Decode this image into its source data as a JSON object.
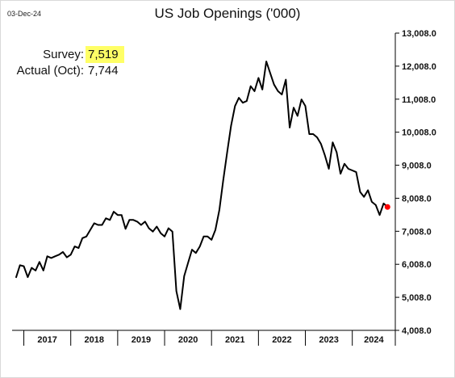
{
  "header": {
    "date": "03-Dec-24",
    "title": "US Job Openings ('000)"
  },
  "callout": {
    "survey_label": "Survey:",
    "survey_value": "7,519",
    "actual_label": "Actual (Oct):",
    "actual_value": "7,744"
  },
  "colors": {
    "line": "#000000",
    "latest_marker": "#ff0000",
    "highlight": "#ffff66"
  },
  "chart_data": {
    "type": "line",
    "title": "US Job Openings ('000)",
    "xlabel": "",
    "ylabel": "",
    "ylim": [
      4008,
      13008
    ],
    "y_ticks": [
      "13,008.0",
      "12,008.0",
      "11,008.0",
      "10,008.0",
      "9,008.0",
      "8,008.0",
      "7,008.0",
      "6,008.0",
      "5,008.0",
      "4,008.0"
    ],
    "y_tick_values": [
      13008,
      12008,
      11008,
      10008,
      9008,
      8008,
      7008,
      6008,
      5008,
      4008
    ],
    "x_categories": [
      "2017",
      "2018",
      "2019",
      "2020",
      "2021",
      "2022",
      "2023",
      "2024"
    ],
    "x_range": [
      "2016-10",
      "2024-12"
    ],
    "grid": false,
    "y_axis_side": "right",
    "series": [
      {
        "x": [
          "2016-11",
          "2016-12",
          "2017-01",
          "2017-02",
          "2017-03",
          "2017-04",
          "2017-05",
          "2017-06",
          "2017-07",
          "2017-08",
          "2017-09",
          "2017-10",
          "2017-11",
          "2017-12",
          "2018-01",
          "2018-02",
          "2018-03",
          "2018-04",
          "2018-05",
          "2018-06",
          "2018-07",
          "2018-08",
          "2018-09",
          "2018-10",
          "2018-11",
          "2018-12",
          "2019-01",
          "2019-02",
          "2019-03",
          "2019-04",
          "2019-05",
          "2019-06",
          "2019-07",
          "2019-08",
          "2019-09",
          "2019-10",
          "2019-11",
          "2019-12",
          "2020-01",
          "2020-02",
          "2020-03",
          "2020-04",
          "2020-05",
          "2020-06",
          "2020-07",
          "2020-08",
          "2020-09",
          "2020-10",
          "2020-11",
          "2020-12",
          "2021-01",
          "2021-02",
          "2021-03",
          "2021-04",
          "2021-05",
          "2021-06",
          "2021-07",
          "2021-08",
          "2021-09",
          "2021-10",
          "2021-11",
          "2021-12",
          "2022-01",
          "2022-02",
          "2022-03",
          "2022-04",
          "2022-05",
          "2022-06",
          "2022-07",
          "2022-08",
          "2022-09",
          "2022-10",
          "2022-11",
          "2022-12",
          "2023-01",
          "2023-02",
          "2023-03",
          "2023-04",
          "2023-05",
          "2023-06",
          "2023-07",
          "2023-08",
          "2023-09",
          "2023-10",
          "2023-11",
          "2023-12",
          "2024-01",
          "2024-02",
          "2024-03",
          "2024-04",
          "2024-05",
          "2024-06",
          "2024-07",
          "2024-08",
          "2024-09"
        ],
        "values": [
          5600,
          5980,
          5950,
          5620,
          5900,
          5820,
          6080,
          5820,
          6250,
          6200,
          6250,
          6300,
          6380,
          6220,
          6300,
          6550,
          6500,
          6800,
          6850,
          7050,
          7250,
          7200,
          7200,
          7400,
          7350,
          7600,
          7500,
          7500,
          7080,
          7350,
          7350,
          7300,
          7200,
          7300,
          7100,
          7000,
          7150,
          6950,
          6850,
          7100,
          7000,
          5200,
          4650,
          5650,
          6050,
          6450,
          6350,
          6550,
          6850,
          6850,
          6750,
          7050,
          7650,
          8550,
          9400,
          10200,
          10800,
          11050,
          10900,
          10950,
          11400,
          11250,
          11650,
          11300,
          12150,
          11800,
          11450,
          11250,
          11150,
          11600,
          10150,
          10750,
          10500,
          11000,
          10800,
          9950,
          9950,
          9850,
          9650,
          9300,
          8900,
          9700,
          9400,
          8750,
          9050,
          8900,
          8850,
          8800,
          8200,
          8050,
          8250,
          7900,
          7800,
          7500,
          7850
        ]
      }
    ],
    "latest_point": {
      "x": "2024-10",
      "value": 7744
    }
  }
}
